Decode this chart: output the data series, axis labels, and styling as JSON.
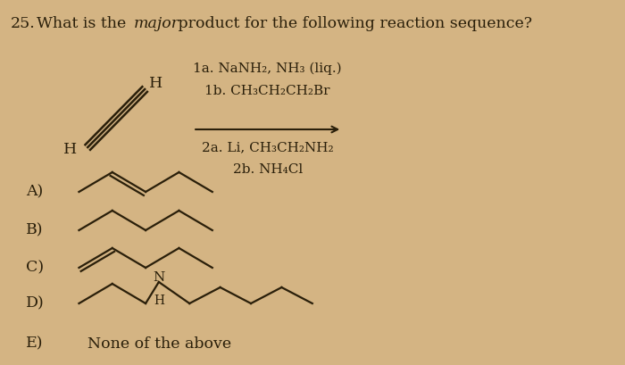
{
  "background_color": "#d4b483",
  "text_color": "#2a1f0a",
  "font_size_q": 12.5,
  "font_size_reagent": 11,
  "font_size_opt": 12.5,
  "reagent_above_1": "1a. NaNH₂, NH₃ (liq.)",
  "reagent_above_2": "1b. CH₃CH₂CH₂Br",
  "reagent_below_1": "2a. Li, CH₃CH₂NH₂",
  "reagent_below_2": "2b. NH₄Cl",
  "option_e_text": "None of the above"
}
